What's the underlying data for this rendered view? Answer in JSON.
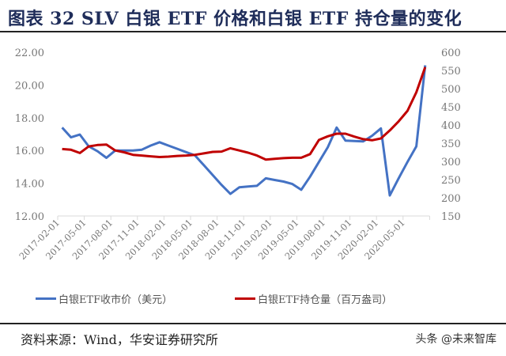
{
  "title": "图表 32 SLV 白银 ETF 价格和白银 ETF 持仓量的变化",
  "source": "资料来源：Wind，华安证券研究所",
  "watermark": "头条 @未来智库",
  "chart_data": {
    "type": "line",
    "title": "图表 32 SLV 白银 ETF 价格和白银 ETF 持仓量的变化",
    "x": [
      "2017-02",
      "2017-03",
      "2017-04",
      "2017-05",
      "2017-06",
      "2017-07",
      "2017-08",
      "2017-09",
      "2017-10",
      "2017-11",
      "2017-12",
      "2018-01",
      "2018-02",
      "2018-03",
      "2018-04",
      "2018-05",
      "2018-06",
      "2018-07",
      "2018-08",
      "2018-09",
      "2018-10",
      "2018-11",
      "2018-12",
      "2019-01",
      "2019-02",
      "2019-03",
      "2019-04",
      "2019-05",
      "2019-06",
      "2019-07",
      "2019-08",
      "2019-09",
      "2019-10",
      "2019-11",
      "2019-12",
      "2020-01",
      "2020-02",
      "2020-03",
      "2020-04",
      "2020-05",
      "2020-06",
      "2020-07"
    ],
    "x_tick_labels": [
      "2017-02-01",
      "2017-05-01",
      "2017-08-01",
      "2017-11-01",
      "2018-02-01",
      "2018-05-01",
      "2018-08-01",
      "2018-11-01",
      "2019-02-01",
      "2019-05-01",
      "2019-08-01",
      "2019-11-01",
      "2020-02-01",
      "2020-05-01"
    ],
    "y_left": {
      "range": [
        12,
        22
      ],
      "ticks": [
        "12.00",
        "14.00",
        "16.00",
        "18.00",
        "20.00",
        "22.00"
      ]
    },
    "y_right": {
      "range": [
        150,
        600
      ],
      "ticks": [
        "150",
        "200",
        "250",
        "300",
        "350",
        "400",
        "450",
        "500",
        "550",
        "600"
      ]
    },
    "grid": false,
    "legend_position": "bottom",
    "series": [
      {
        "name": "白银ETF收市价（美元）",
        "axis": "left",
        "color": "#4472c4",
        "values": [
          17.4,
          16.8,
          16.97,
          16.25,
          15.95,
          15.55,
          16.0,
          16.0,
          16.0,
          16.05,
          16.3,
          16.5,
          16.3,
          16.1,
          15.9,
          15.7,
          15.1,
          14.5,
          13.9,
          13.35,
          13.75,
          13.8,
          13.84,
          14.3,
          14.2,
          14.1,
          13.95,
          13.6,
          14.4,
          15.3,
          16.2,
          17.4,
          16.6,
          16.58,
          16.55,
          16.9,
          17.35,
          13.25,
          14.3,
          15.3,
          16.25,
          21.2
        ]
      },
      {
        "name": "白银ETF持仓量（百万盎司）",
        "axis": "right",
        "color": "#c00000",
        "values": [
          334,
          332,
          323,
          341,
          345,
          346,
          330,
          325,
          318,
          316,
          314,
          312,
          313,
          315,
          316,
          318,
          322,
          326,
          327,
          336,
          330,
          324,
          316,
          305,
          307,
          309,
          310,
          310,
          320,
          359,
          369,
          376,
          376,
          368,
          361,
          358,
          363,
          385,
          410,
          439,
          490,
          559
        ]
      }
    ]
  }
}
